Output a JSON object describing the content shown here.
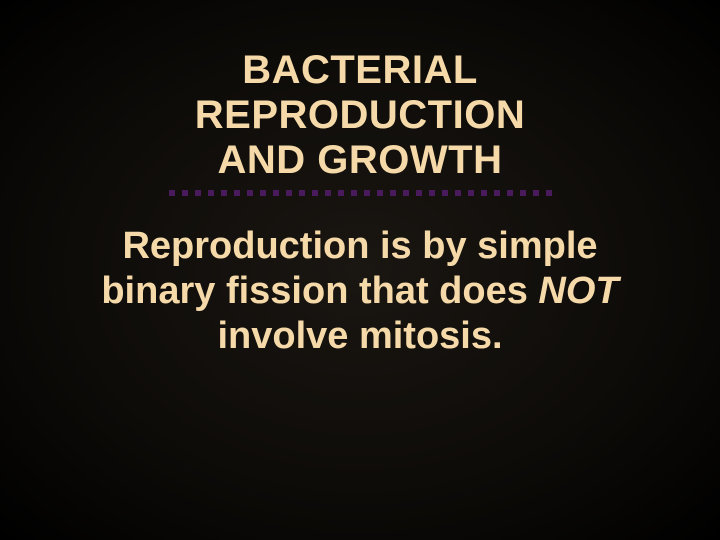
{
  "slide": {
    "title_lines": [
      "BACTERIAL",
      "REPRODUCTION",
      "AND GROWTH"
    ],
    "body_pre": "Reproduction is by simple binary fission that does ",
    "body_em": "NOT",
    "body_post": " involve mitosis."
  },
  "style": {
    "background_gradient": [
      "#1a1612",
      "#0d0b08",
      "#000000"
    ],
    "text_color": "#f5d9a8",
    "dot_color": "#4a1b5c",
    "dot_count": 30,
    "title_fontsize": 40,
    "body_fontsize": 38,
    "font_family": "Verdana, Geneva, sans-serif",
    "font_weight": 700
  }
}
